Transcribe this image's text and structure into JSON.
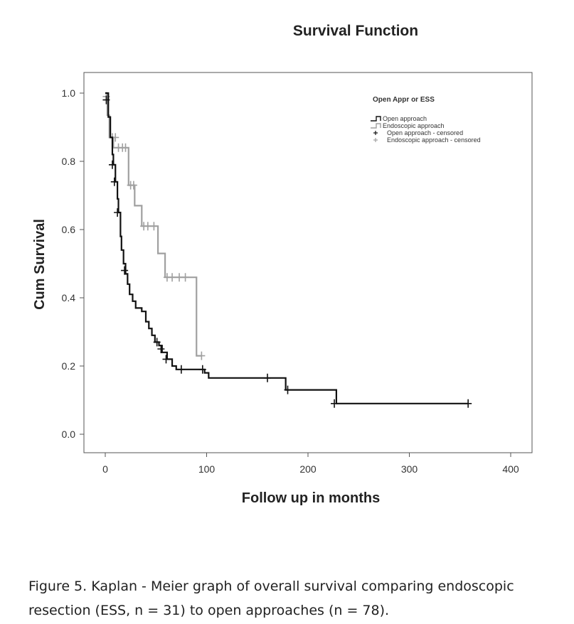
{
  "chart_data": {
    "type": "line",
    "title": "Survival Function",
    "xlabel": "Follow up in months",
    "ylabel": "Cum Survival",
    "xlim": [
      -20,
      420
    ],
    "ylim": [
      -0.04,
      1.06
    ],
    "xticks": [
      0,
      100,
      200,
      300,
      400
    ],
    "yticks": [
      "0.0",
      "0.2",
      "0.4",
      "0.6",
      "0.8",
      "1.0"
    ],
    "grid": false,
    "legend": {
      "title": "Open Appr or ESS",
      "placement": "top-right",
      "entries": [
        "Open approach",
        "Endoscopic approach",
        "Open approach - censored",
        "Endoscopic approach - censored"
      ]
    },
    "series": [
      {
        "name": "Endoscopic approach",
        "color": "#a0a0a0",
        "steps": [
          [
            0,
            1.0
          ],
          [
            2,
            0.935
          ],
          [
            4,
            0.87
          ],
          [
            8,
            0.84
          ],
          [
            23,
            0.73
          ],
          [
            29,
            0.67
          ],
          [
            36,
            0.61
          ],
          [
            52,
            0.53
          ],
          [
            59,
            0.46
          ],
          [
            90,
            0.23
          ]
        ],
        "end": 95,
        "censored": [
          [
            1,
            0.99
          ],
          [
            7,
            0.87
          ],
          [
            10,
            0.87
          ],
          [
            13,
            0.84
          ],
          [
            17,
            0.84
          ],
          [
            20,
            0.84
          ],
          [
            25,
            0.73
          ],
          [
            28,
            0.73
          ],
          [
            38,
            0.61
          ],
          [
            42,
            0.61
          ],
          [
            48,
            0.61
          ],
          [
            61,
            0.46
          ],
          [
            66,
            0.46
          ],
          [
            73,
            0.46
          ],
          [
            79,
            0.46
          ],
          [
            95,
            0.23
          ]
        ]
      },
      {
        "name": "Open approach",
        "color": "#111111",
        "steps": [
          [
            0,
            1.0
          ],
          [
            3,
            0.93
          ],
          [
            5,
            0.87
          ],
          [
            7,
            0.82
          ],
          [
            8,
            0.79
          ],
          [
            10,
            0.74
          ],
          [
            12,
            0.69
          ],
          [
            13,
            0.65
          ],
          [
            15,
            0.58
          ],
          [
            16,
            0.54
          ],
          [
            18,
            0.5
          ],
          [
            20,
            0.47
          ],
          [
            22,
            0.44
          ],
          [
            24,
            0.41
          ],
          [
            27,
            0.39
          ],
          [
            30,
            0.37
          ],
          [
            36,
            0.36
          ],
          [
            40,
            0.33
          ],
          [
            43,
            0.31
          ],
          [
            46,
            0.29
          ],
          [
            49,
            0.27
          ],
          [
            53,
            0.26
          ],
          [
            56,
            0.24
          ],
          [
            61,
            0.22
          ],
          [
            66,
            0.2
          ],
          [
            70,
            0.19
          ],
          [
            98,
            0.18
          ],
          [
            102,
            0.165
          ],
          [
            178,
            0.13
          ],
          [
            228,
            0.09
          ]
        ],
        "end": 358,
        "censored": [
          [
            1,
            0.98
          ],
          [
            7,
            0.79
          ],
          [
            9,
            0.74
          ],
          [
            12,
            0.65
          ],
          [
            19,
            0.48
          ],
          [
            51,
            0.27
          ],
          [
            55,
            0.25
          ],
          [
            60,
            0.22
          ],
          [
            75,
            0.19
          ],
          [
            96,
            0.19
          ],
          [
            160,
            0.165
          ],
          [
            180,
            0.13
          ],
          [
            226,
            0.09
          ],
          [
            358,
            0.09
          ]
        ]
      }
    ]
  },
  "caption": "Figure 5. Kaplan - Meier graph of overall survival comparing endoscopic resection (ESS, n = 31) to open approaches (n = 78)."
}
